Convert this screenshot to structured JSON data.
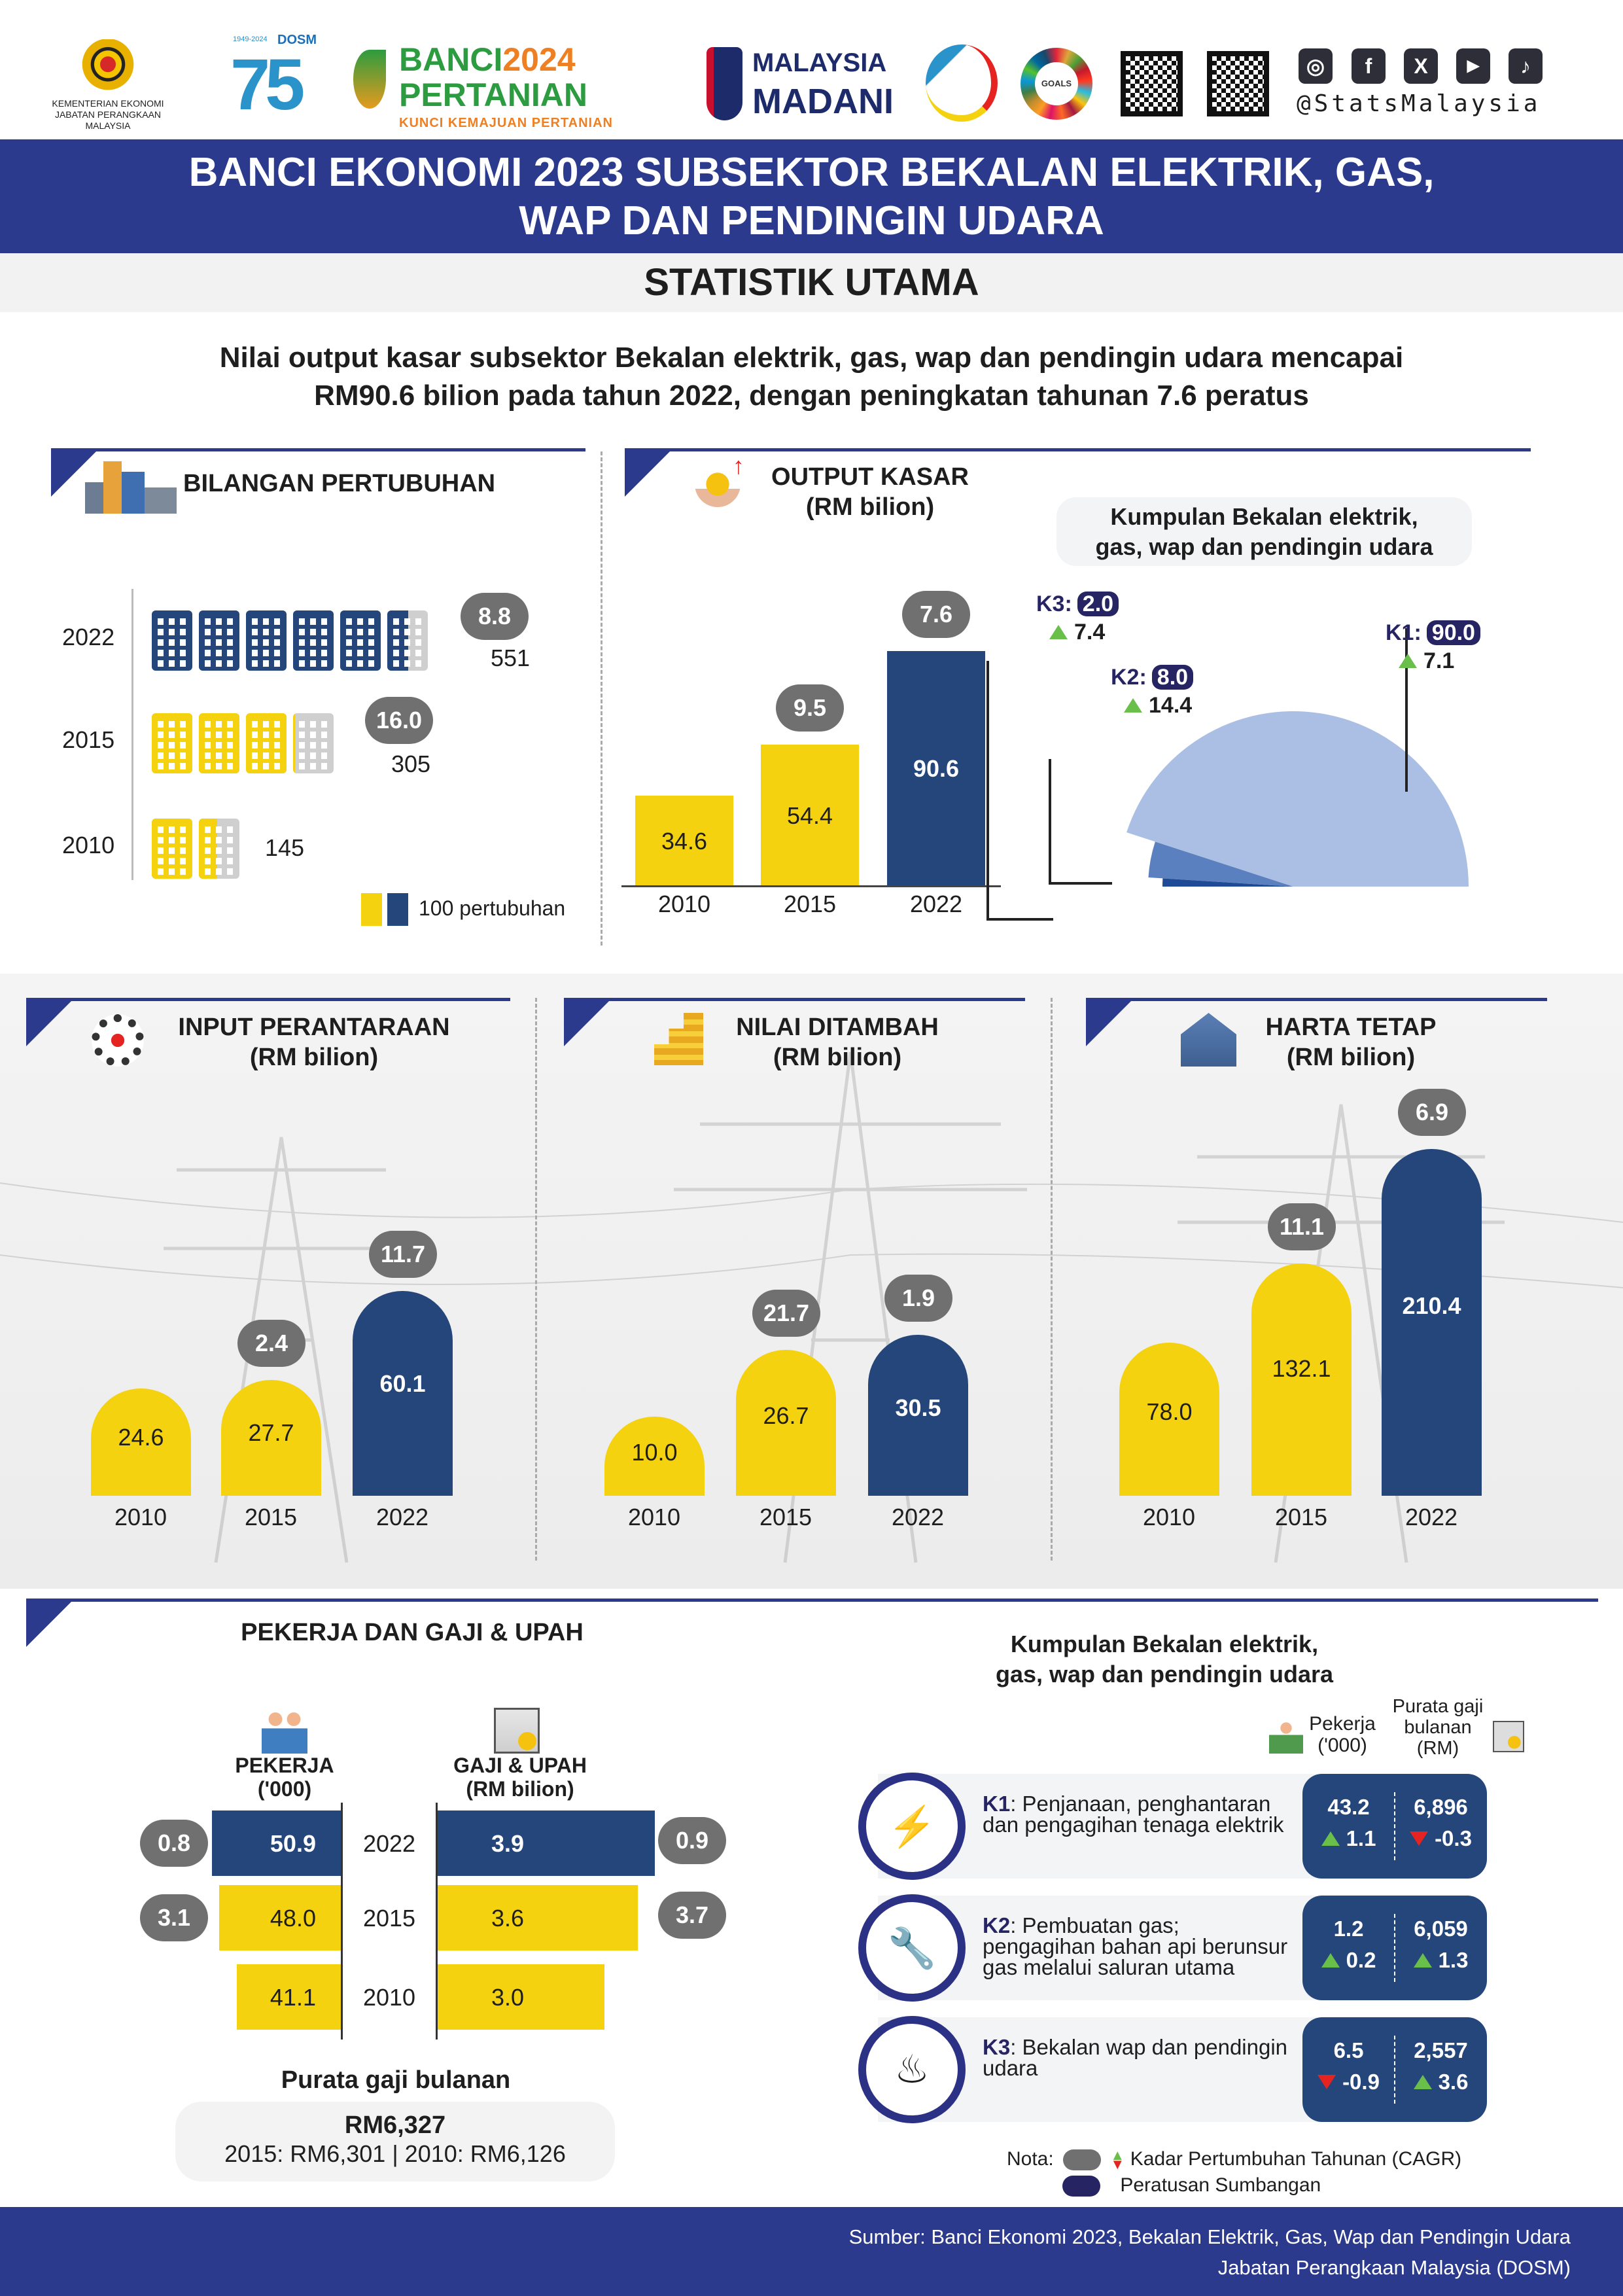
{
  "header": {
    "ministry_line1": "KEMENTERIAN EKONOMI",
    "ministry_line2": "JABATAN PERANGKAAN MALAYSIA",
    "dosm_years": "1949-2024",
    "dosm_label": "DOSM",
    "dosm_number": "75",
    "banci_word1": "BANCI",
    "banci_word2": "2024",
    "banci_word3": "PERTANIAN",
    "banci_tagline": "KUNCI KEMAJUAN PERTANIAN",
    "madani_line1": "MALAYSIA",
    "madani_line2": "MADANI",
    "sdg_label": "GOALS",
    "social_handle": "@StatsMalaysia",
    "social_icons": [
      "instagram-icon",
      "facebook-icon",
      "x-icon",
      "youtube-icon",
      "tiktok-icon"
    ]
  },
  "title": {
    "line1": "BANCI EKONOMI 2023 SUBSEKTOR BEKALAN ELEKTRIK, GAS,",
    "line2": "WAP DAN PENDINGIN UDARA",
    "subtitle": "STATISTIK UTAMA"
  },
  "summary": {
    "line1": "Nilai output kasar subsektor Bekalan elektrik, gas, wap dan pendingin udara mencapai",
    "line2": "RM90.6 bilion pada tahun 2022, dengan peningkatan tahunan 7.6 peratus"
  },
  "colors": {
    "navy": "#25467b",
    "yellow": "#f4d20f",
    "gray_pill": "#707070",
    "title_band": "#2b3a8c",
    "gray_building": "#cfcfcf"
  },
  "establishments": {
    "title": "BILANGAN PERTUBUHAN",
    "legend": "100 pertubuhan",
    "rows": [
      {
        "year": "2022",
        "count": 551,
        "count_label": "551",
        "cagr": "8.8",
        "color": "navy"
      },
      {
        "year": "2015",
        "count": 305,
        "count_label": "305",
        "cagr": "16.0",
        "color": "yellow"
      },
      {
        "year": "2010",
        "count": 145,
        "count_label": "145",
        "cagr": null,
        "color": "yellow"
      }
    ]
  },
  "chart_data": [
    {
      "type": "bar",
      "title": "OUTPUT KASAR",
      "subtitle": "(RM bilion)",
      "categories": [
        "2010",
        "2015",
        "2022"
      ],
      "values": [
        34.6,
        54.4,
        90.6
      ],
      "value_labels": [
        "34.6",
        "54.4",
        "90.6"
      ],
      "cagr": [
        null,
        "9.5",
        "7.6"
      ]
    },
    {
      "type": "pie",
      "title": "Kumpulan Bekalan elektrik, gas, wap dan pendingin udara",
      "slices": [
        {
          "label": "K1:",
          "share": 90.0,
          "share_label": "90.0",
          "cagr": "7.1",
          "color": "#abbfe4"
        },
        {
          "label": "K2:",
          "share": 8.0,
          "share_label": "8.0",
          "cagr": "14.4",
          "color": "#5b80bf"
        },
        {
          "label": "K3:",
          "share": 2.0,
          "share_label": "2.0",
          "cagr": "7.4",
          "color": "#1f4a96"
        }
      ]
    },
    {
      "type": "bar",
      "title": "INPUT PERANTARAAN",
      "subtitle": "(RM bilion)",
      "categories": [
        "2010",
        "2015",
        "2022"
      ],
      "values": [
        24.6,
        27.7,
        60.1
      ],
      "value_labels": [
        "24.6",
        "27.7",
        "60.1"
      ],
      "cagr": [
        null,
        "2.4",
        "11.7"
      ]
    },
    {
      "type": "bar",
      "title": "NILAI DITAMBAH",
      "subtitle": "(RM bilion)",
      "categories": [
        "2010",
        "2015",
        "2022"
      ],
      "values": [
        10.0,
        26.7,
        30.5
      ],
      "value_labels": [
        "10.0",
        "26.7",
        "30.5"
      ],
      "cagr": [
        null,
        "21.7",
        "1.9"
      ]
    },
    {
      "type": "bar",
      "title": "HARTA TETAP",
      "subtitle": "(RM bilion)",
      "categories": [
        "2010",
        "2015",
        "2022"
      ],
      "values": [
        78.0,
        132.1,
        210.4
      ],
      "value_labels": [
        "78.0",
        "132.1",
        "210.4"
      ],
      "cagr": [
        null,
        "11.1",
        "6.9"
      ]
    },
    {
      "type": "bar",
      "title": "PEKERJA DAN GAJI & UPAH",
      "categories": [
        "2022",
        "2015",
        "2010"
      ],
      "series": [
        {
          "name": "PEKERJA",
          "unit": "('000)",
          "values": [
            50.9,
            48.0,
            41.1
          ],
          "value_labels": [
            "50.9",
            "48.0",
            "41.1"
          ],
          "cagr": [
            "0.8",
            "3.1",
            null
          ]
        },
        {
          "name": "GAJI & UPAH",
          "unit": "(RM bilion)",
          "values": [
            3.9,
            3.6,
            3.0
          ],
          "value_labels": [
            "3.9",
            "3.6",
            "3.0"
          ],
          "cagr": [
            "0.9",
            "3.7",
            null
          ]
        }
      ]
    }
  ],
  "wages": {
    "title": "Purata gaji bulanan",
    "current": "RM6,327",
    "previous": "2015: RM6,301 | 2010: RM6,126"
  },
  "groups": {
    "title_line1": "Kumpulan Bekalan elektrik,",
    "title_line2": "gas, wap dan pendingin udara",
    "col_workers_line1": "Pekerja",
    "col_workers_line2": "('000)",
    "col_wage_line1": "Purata gaji",
    "col_wage_line2": "bulanan",
    "col_wage_line3": "(RM)",
    "rows": [
      {
        "code": "K1",
        "desc": ": Penjanaan, penghantaran dan pengagihan tenaga elektrik",
        "workers": "43.2",
        "workers_cagr": "1.1",
        "workers_dir": "up",
        "wage": "6,896",
        "wage_cagr": "-0.3",
        "wage_dir": "down"
      },
      {
        "code": "K2",
        "desc": ": Pembuatan gas; pengagihan bahan api berunsur gas melalui saluran utama",
        "workers": "1.2",
        "workers_cagr": "0.2",
        "workers_dir": "up",
        "wage": "6,059",
        "wage_cagr": "1.3",
        "wage_dir": "up"
      },
      {
        "code": "K3",
        "desc": ": Bekalan wap dan pendingin udara",
        "workers": "6.5",
        "workers_cagr": "-0.9",
        "workers_dir": "down",
        "wage": "2,557",
        "wage_cagr": "3.6",
        "wage_dir": "up"
      }
    ]
  },
  "notes": {
    "label": "Nota:",
    "cagr": "Kadar Pertumbuhan Tahunan (CAGR)",
    "share": "Peratusan Sumbangan"
  },
  "footer": {
    "line1": "Sumber: Banci Ekonomi 2023, Bekalan Elektrik, Gas, Wap dan Pendingin Udara",
    "line2": "Jabatan Perangkaan Malaysia (DOSM)"
  }
}
